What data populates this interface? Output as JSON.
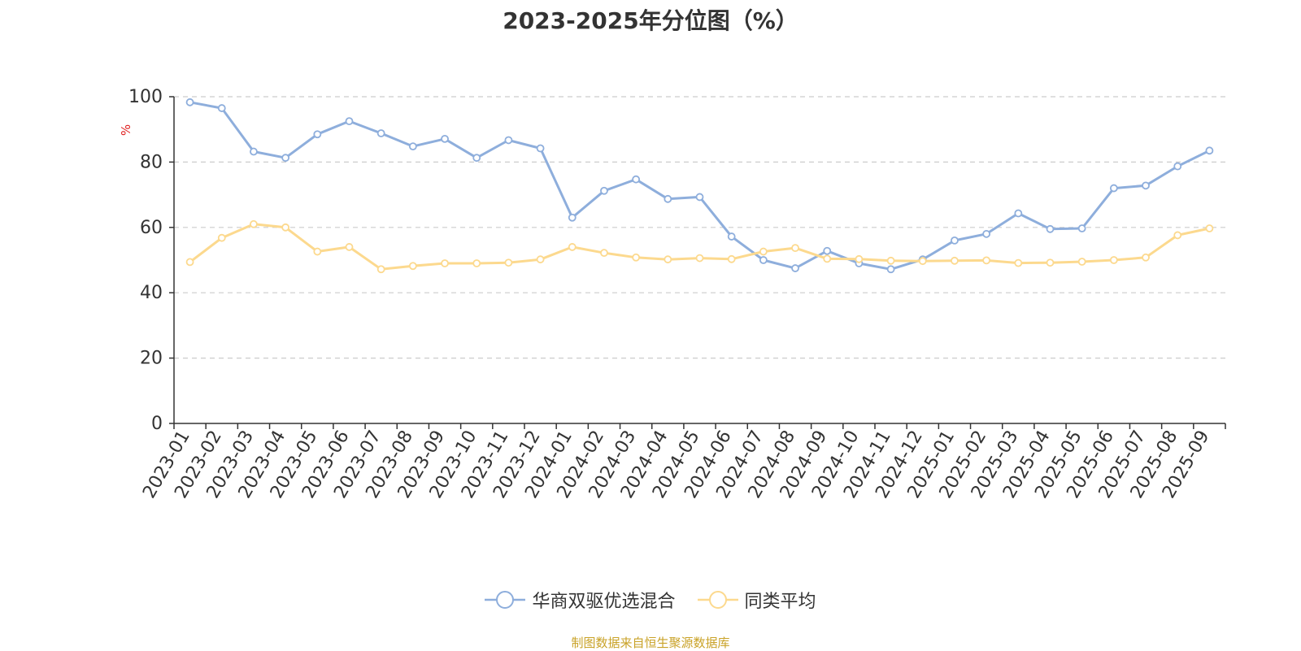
{
  "chart_data": {
    "type": "line",
    "title": "2023-2025年分位图（%）",
    "ylabel": "%",
    "xlabel": "",
    "ylim": [
      0,
      100
    ],
    "yticks": [
      0,
      20,
      40,
      60,
      80,
      100
    ],
    "grid": true,
    "legend_position": "bottom",
    "categories": [
      "2023-01",
      "2023-02",
      "2023-03",
      "2023-04",
      "2023-05",
      "2023-06",
      "2023-07",
      "2023-08",
      "2023-09",
      "2023-10",
      "2023-11",
      "2023-12",
      "2024-01",
      "2024-02",
      "2024-03",
      "2024-04",
      "2024-05",
      "2024-06",
      "2024-07",
      "2024-08",
      "2024-09",
      "2024-10",
      "2024-11",
      "2024-12",
      "2025-01",
      "2025-02",
      "2025-03",
      "2025-04",
      "2025-05",
      "2025-06",
      "2025-07",
      "2025-08",
      "2025-09"
    ],
    "series": [
      {
        "name": "华商双驱优选混合",
        "color": "#8eaedc",
        "values": [
          98.3,
          96.5,
          83.2,
          81.3,
          88.5,
          92.5,
          88.8,
          84.8,
          87.1,
          81.3,
          86.7,
          84.2,
          63.0,
          71.2,
          74.7,
          68.7,
          69.3,
          57.2,
          50.0,
          47.5,
          52.8,
          49.0,
          47.2,
          50.2,
          56.0,
          58.0,
          64.3,
          59.5,
          59.7,
          72.0,
          72.8,
          78.7,
          83.5
        ]
      },
      {
        "name": "同类平均",
        "color": "#fcd98e",
        "values": [
          49.4,
          56.8,
          61.0,
          60.0,
          52.6,
          54.0,
          47.2,
          48.2,
          49.0,
          49.0,
          49.2,
          50.2,
          54.0,
          52.2,
          50.8,
          50.2,
          50.6,
          50.3,
          52.6,
          53.7,
          50.4,
          50.3,
          49.8,
          49.7,
          49.8,
          49.9,
          49.1,
          49.2,
          49.5,
          50.0,
          50.8,
          57.6,
          59.7
        ]
      }
    ]
  },
  "source_note": "制图数据来自恒生聚源数据库"
}
